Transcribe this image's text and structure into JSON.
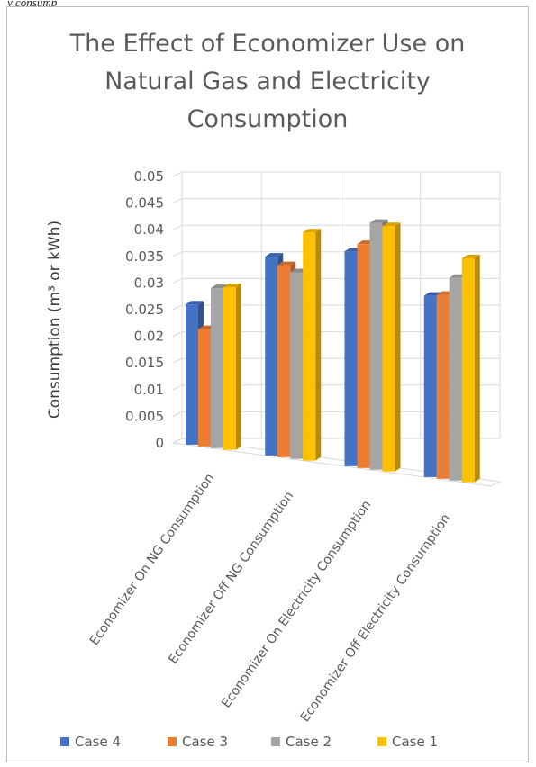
{
  "caption_fragment": "y consump",
  "colors": {
    "series_case4": "#4472C4",
    "series_case3": "#ED7D31",
    "series_case2": "#A5A5A5",
    "series_case1": "#FFC000",
    "gridline": "#d9d9d9",
    "text": "#595959"
  },
  "chart_data": {
    "type": "bar",
    "subtype": "3d-clustered-column",
    "title": [
      "The Effect of Economizer Use on",
      "Natural Gas and Electricity",
      "Consumption"
    ],
    "xlabel": "",
    "ylabel": "Consumption (m³ or kWh)",
    "ylim": [
      0,
      0.05
    ],
    "yticks": [
      "0",
      "0.005",
      "0.01",
      "0.015",
      "0.02",
      "0.025",
      "0.03",
      "0.035",
      "0.04",
      "0.045",
      "0.05"
    ],
    "grid": true,
    "legend_position": "bottom",
    "categories": [
      "Economizer On NG Consumption",
      "Economizer Off NG Consumption",
      "Economizer On Electricity Consumption",
      "Economizer Off Electricity Consumption"
    ],
    "series": [
      {
        "name": "Case 4",
        "values": [
          0.0263,
          0.0373,
          0.0403,
          0.034
        ]
      },
      {
        "name": "Case 3",
        "values": [
          0.022,
          0.036,
          0.042,
          0.0345
        ]
      },
      {
        "name": "Case 2",
        "values": [
          0.03,
          0.035,
          0.0463,
          0.038
        ]
      },
      {
        "name": "Case 1",
        "values": [
          0.0305,
          0.0428,
          0.046,
          0.042
        ]
      }
    ]
  }
}
